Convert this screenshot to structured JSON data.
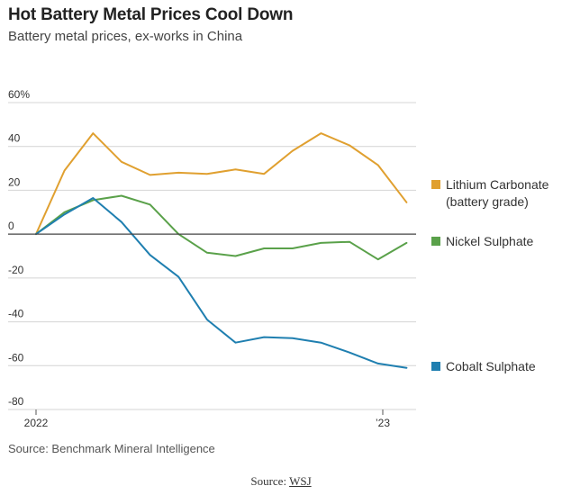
{
  "header": {
    "title": "Hot Battery Metal Prices Cool Down",
    "subtitle": "Battery metal prices, ex-works in China"
  },
  "footer": {
    "note": "Source: Benchmark Mineral Intelligence",
    "credit_prefix": "Source: ",
    "credit_link": "WSJ"
  },
  "colors": {
    "lithium": "#e0a030",
    "nickel": "#5aa14a",
    "cobalt": "#1f7fb0",
    "grid": "#d4d4d4",
    "zero_line": "#444444",
    "text": "#333333"
  },
  "chart_data": {
    "type": "line",
    "title": "Hot Battery Metal Prices Cool Down",
    "subtitle": "Battery metal prices, ex-works in China",
    "y_unit": "%",
    "ylim": [
      -80,
      60
    ],
    "yticks": [
      {
        "value": 60,
        "label": "60%"
      },
      {
        "value": 40,
        "label": "40"
      },
      {
        "value": 20,
        "label": "20"
      },
      {
        "value": 0,
        "label": "0"
      },
      {
        "value": -20,
        "label": "-20"
      },
      {
        "value": -40,
        "label": "-40"
      },
      {
        "value": -60,
        "label": "-60"
      },
      {
        "value": -80,
        "label": "-80"
      }
    ],
    "xlim": [
      "2022-01-01",
      "2023-02-15"
    ],
    "xticks": [
      {
        "value": "2022-01-01",
        "label": "2022"
      },
      {
        "value": "2023-01-01",
        "label": "’23"
      }
    ],
    "x": [
      "2022-01-01",
      "2022-01-31",
      "2022-03-02",
      "2022-04-01",
      "2022-05-01",
      "2022-05-31",
      "2022-06-30",
      "2022-07-30",
      "2022-08-29",
      "2022-09-28",
      "2022-10-28",
      "2022-11-27",
      "2022-12-27",
      "2023-01-26"
    ],
    "series": [
      {
        "name": "Lithium Carbonate (battery grade)",
        "label_lines": [
          "Lithium Carbonate",
          "(battery grade)"
        ],
        "color_key": "lithium",
        "values": [
          0,
          29,
          46,
          33,
          27,
          28,
          27.5,
          29.5,
          27.5,
          38,
          46,
          40.5,
          31.5,
          14.5
        ]
      },
      {
        "name": "Nickel Sulphate",
        "label_lines": [
          "Nickel Sulphate"
        ],
        "color_key": "nickel",
        "values": [
          0,
          10,
          15.5,
          17.5,
          13.5,
          0,
          -8.5,
          -10,
          -6.5,
          -6.5,
          -4,
          -3.5,
          -11.5,
          -4
        ]
      },
      {
        "name": "Cobalt Sulphate",
        "label_lines": [
          "Cobalt Sulphate"
        ],
        "color_key": "cobalt",
        "values": [
          0,
          9,
          16.5,
          5.5,
          -9.5,
          -19.5,
          -39,
          -49.5,
          -47,
          -47.5,
          -49.5,
          -54,
          -59,
          -61
        ]
      }
    ],
    "legend": "right, at line ends",
    "grid": true
  }
}
